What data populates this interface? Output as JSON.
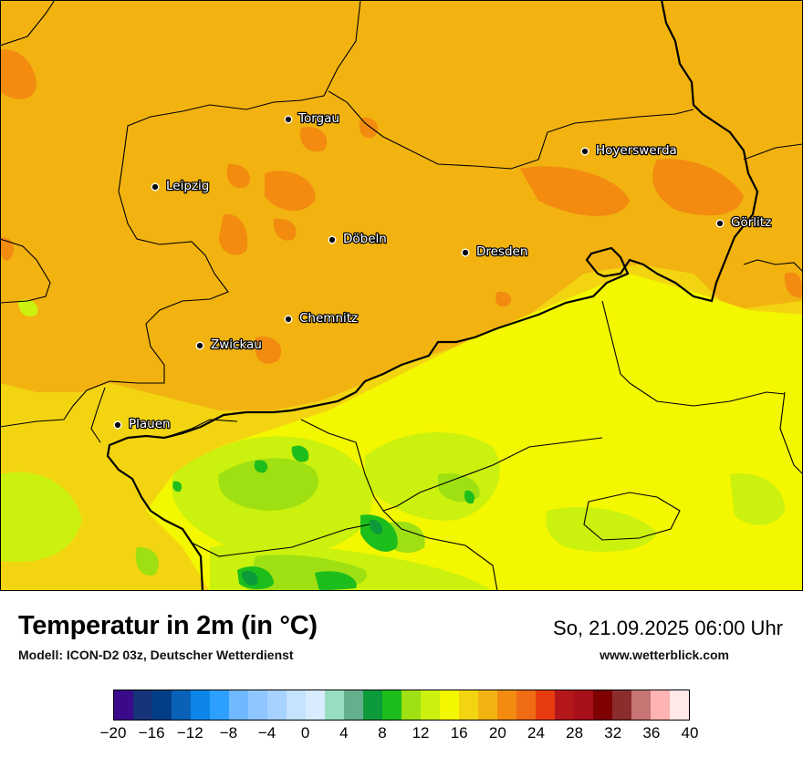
{
  "map": {
    "cities": [
      {
        "name": "Torgau"
      },
      {
        "name": "Hoyerswerda"
      },
      {
        "name": "Leipzig"
      },
      {
        "name": "Görlitz"
      },
      {
        "name": "Döbeln"
      },
      {
        "name": "Dresden"
      },
      {
        "name": "Chemnitz"
      },
      {
        "name": "Zwickau"
      },
      {
        "name": "Plauen"
      }
    ]
  },
  "footer": {
    "title": "Temperatur in 2m (in °C)",
    "subtitle": "Modell: ICON-D2 03z, Deutscher Wetterdienst",
    "datetime": "So, 21.09.2025 06:00 Uhr",
    "website": "www.wetterblick.com"
  },
  "colorscale": {
    "colors": [
      "#3a0a8a",
      "#16347a",
      "#003f86",
      "#0a62b8",
      "#0c86e8",
      "#2da0ff",
      "#70b8ff",
      "#8fc6ff",
      "#a7d2ff",
      "#c5e2ff",
      "#d9ecff",
      "#98ddc0",
      "#64b08c",
      "#0d9a3a",
      "#1dbe1c",
      "#9fe012",
      "#cbf10e",
      "#f3f700",
      "#f3d411",
      "#f2b310",
      "#f28b10",
      "#ef6b14",
      "#e83c10",
      "#b3171a",
      "#a81019",
      "#7f0000",
      "#8b2d2d",
      "#c77474",
      "#ffb3b3",
      "#ffe8e8"
    ],
    "ticks": [
      "−20",
      "−16",
      "−12",
      "−8",
      "−4",
      "0",
      "4",
      "8",
      "12",
      "16",
      "20",
      "24",
      "28",
      "32",
      "36",
      "40"
    ]
  }
}
